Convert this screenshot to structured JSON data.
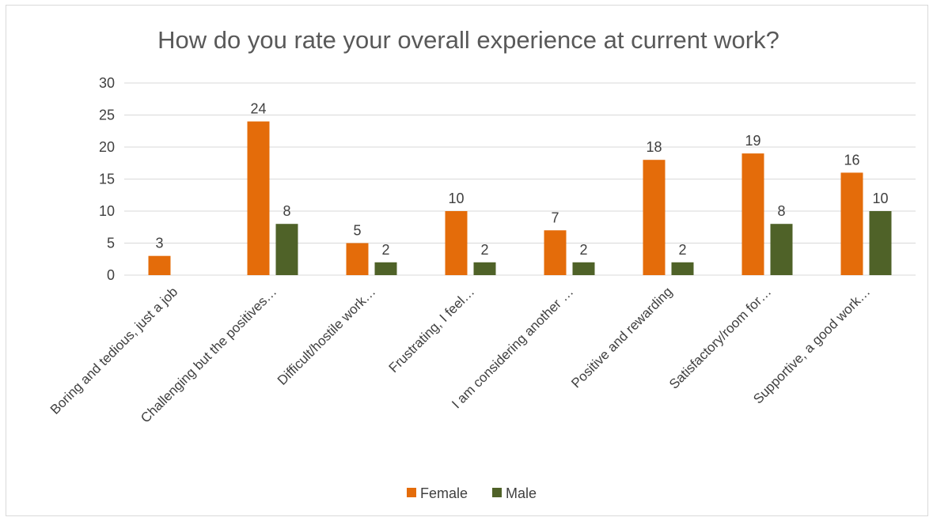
{
  "chart_data": {
    "type": "bar",
    "title": "How do you rate your overall experience at current work?",
    "xlabel": "",
    "ylabel": "",
    "ylim": [
      0,
      30
    ],
    "yticks": [
      0,
      5,
      10,
      15,
      20,
      25,
      30
    ],
    "grid": true,
    "legend_position": "bottom",
    "categories": [
      "Boring and tedious, just a job",
      "Challenging but the positives…",
      "Difficult/hostile work…",
      "Frustrating, I feel…",
      "I am considering another …",
      "Positive and rewarding",
      "Satisfactory/room for…",
      "Supportive, a good work…"
    ],
    "series": [
      {
        "name": "Female",
        "color": "#E46C0A",
        "values": [
          3,
          24,
          5,
          10,
          7,
          18,
          19,
          16
        ]
      },
      {
        "name": "Male",
        "color": "#4F6228",
        "values": [
          null,
          8,
          2,
          2,
          2,
          2,
          8,
          10
        ]
      }
    ]
  }
}
